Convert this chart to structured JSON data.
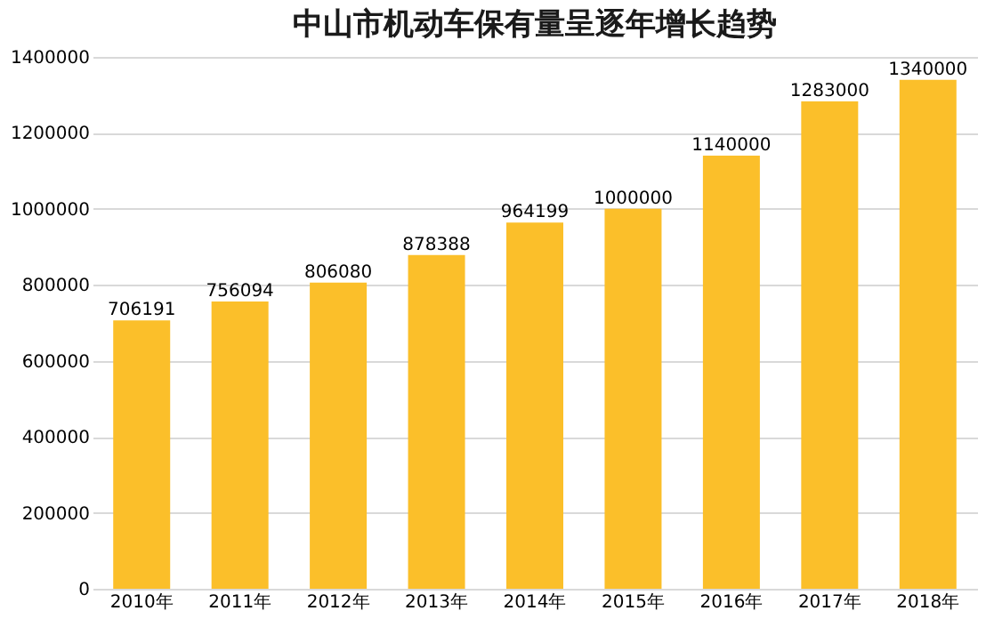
{
  "chart_data": {
    "type": "bar",
    "title": "中山市机动车保有量呈逐年增长趋势",
    "categories": [
      "2010年",
      "2011年",
      "2012年",
      "2013年",
      "2014年",
      "2015年",
      "2016年",
      "2017年",
      "2018年"
    ],
    "values": [
      706191,
      756094,
      806080,
      878388,
      964199,
      1000000,
      1140000,
      1283000,
      1340000
    ],
    "color": "#fbbf2a",
    "ylim": [
      0,
      1400000
    ],
    "yticks": [
      0,
      200000,
      400000,
      600000,
      800000,
      1000000,
      1200000,
      1400000
    ],
    "grid": "y",
    "data_labels": true
  }
}
